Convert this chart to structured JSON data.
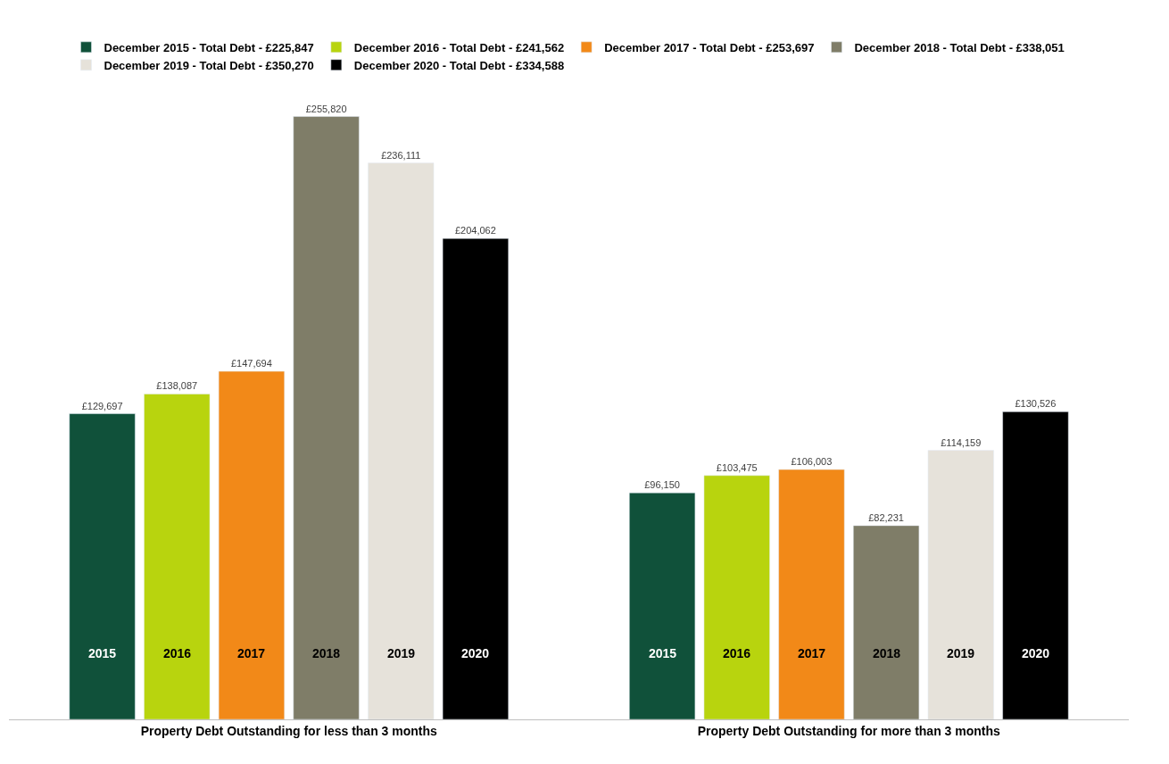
{
  "chart_data": {
    "type": "bar",
    "categories": [
      "Property Debt Outstanding for less than 3 months",
      "Property Debt Outstanding for more than 3 months"
    ],
    "series": [
      {
        "name": "December 2015 - Total Debt - £225,847",
        "color": "#10513a",
        "values": [
          129697,
          96150
        ],
        "value_labels": [
          "£129,697",
          "£96,150"
        ]
      },
      {
        "name": "December 2016 - Total Debt - £241,562",
        "color": "#b8d40e",
        "values": [
          138087,
          103475
        ],
        "value_labels": [
          "£138,087",
          "£103,475"
        ]
      },
      {
        "name": "December 2017 - Total Debt - £253,697",
        "color": "#f28918",
        "values": [
          147694,
          106003
        ],
        "value_labels": [
          "£147,694",
          "£106,003"
        ]
      },
      {
        "name": "December 2018 - Total Debt - £338,051",
        "color": "#7f7d68",
        "values": [
          255820,
          82231
        ],
        "value_labels": [
          "£255,820",
          "£82,231"
        ]
      },
      {
        "name": "December 2019 - Total Debt - £350,270",
        "color": "#e6e2da",
        "values": [
          236111,
          114159
        ],
        "value_labels": [
          "£236,111",
          "£114,159"
        ]
      },
      {
        "name": "December 2020 - Total Debt - £334,588",
        "color": "#000000",
        "values": [
          204062,
          130526
        ],
        "value_labels": [
          "£204,062",
          "£130,526"
        ]
      }
    ],
    "annotations": [
      "2015",
      "2016",
      "2017",
      "2018",
      "2019",
      "2020",
      "2015",
      "2016",
      "2017",
      "2018",
      "2019",
      "2020"
    ],
    "legend": "top",
    "tick_labels": "x"
  }
}
